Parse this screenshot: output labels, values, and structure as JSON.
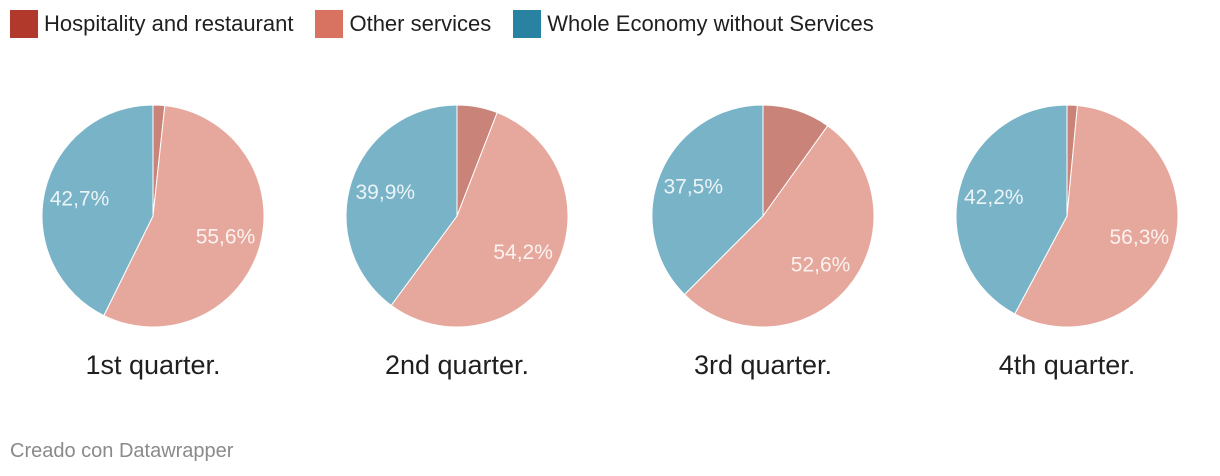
{
  "legend": {
    "items": [
      {
        "label": "Hospitality and restaurant",
        "color": "#b1392b"
      },
      {
        "label": "Other services",
        "color": "#d87361"
      },
      {
        "label": "Whole Economy without Services",
        "color": "#2a82a3"
      }
    ]
  },
  "chart_data": [
    {
      "type": "pie",
      "title": "1st quarter.",
      "slices": [
        {
          "name": "Hospitality and restaurant",
          "value": 1.7,
          "label": "",
          "color": "#c98379"
        },
        {
          "name": "Other services",
          "value": 55.6,
          "label": "55,6%",
          "color": "#e6a89c"
        },
        {
          "name": "Whole Economy without Services",
          "value": 42.7,
          "label": "42,7%",
          "color": "#79b3c7"
        }
      ]
    },
    {
      "type": "pie",
      "title": "2nd quarter.",
      "slices": [
        {
          "name": "Hospitality and restaurant",
          "value": 5.9,
          "label": "",
          "color": "#c98379"
        },
        {
          "name": "Other services",
          "value": 54.2,
          "label": "54,2%",
          "color": "#e6a89c"
        },
        {
          "name": "Whole Economy without Services",
          "value": 39.9,
          "label": "39,9%",
          "color": "#79b3c7"
        }
      ]
    },
    {
      "type": "pie",
      "title": "3rd quarter.",
      "slices": [
        {
          "name": "Hospitality and restaurant",
          "value": 9.9,
          "label": "",
          "color": "#c98379"
        },
        {
          "name": "Other services",
          "value": 52.6,
          "label": "52,6%",
          "color": "#e6a89c"
        },
        {
          "name": "Whole Economy without Services",
          "value": 37.5,
          "label": "37,5%",
          "color": "#79b3c7"
        }
      ]
    },
    {
      "type": "pie",
      "title": "4th quarter.",
      "slices": [
        {
          "name": "Hospitality and restaurant",
          "value": 1.5,
          "label": "",
          "color": "#c98379"
        },
        {
          "name": "Other services",
          "value": 56.3,
          "label": "56,3%",
          "color": "#e6a89c"
        },
        {
          "name": "Whole Economy without Services",
          "value": 42.2,
          "label": "42,2%",
          "color": "#79b3c7"
        }
      ]
    }
  ],
  "footer": {
    "credit": "Creado con Datawrapper"
  }
}
